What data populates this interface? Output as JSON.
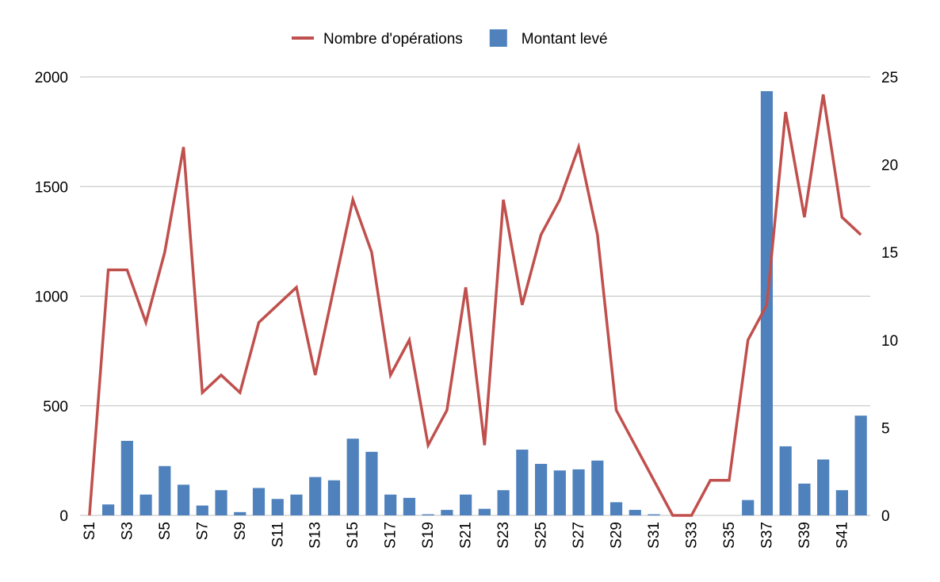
{
  "chart_data": {
    "type": "bar",
    "categories": [
      "S1",
      "S2",
      "S3",
      "S4",
      "S5",
      "S6",
      "S7",
      "S8",
      "S9",
      "S10",
      "S11",
      "S12",
      "S13",
      "S14",
      "S15",
      "S16",
      "S17",
      "S18",
      "S19",
      "S20",
      "S21",
      "S22",
      "S23",
      "S24",
      "S25",
      "S26",
      "S27",
      "S28",
      "S29",
      "S30",
      "S31",
      "S32",
      "S33",
      "S34",
      "S35",
      "S36",
      "S37",
      "S38",
      "S39",
      "S40",
      "S41",
      "S42"
    ],
    "x_tick_labels": [
      "S1",
      "S3",
      "S5",
      "S7",
      "S9",
      "S11",
      "S13",
      "S15",
      "S17",
      "S19",
      "S21",
      "S23",
      "S25",
      "S27",
      "S29",
      "S31",
      "S33",
      "S35",
      "S37",
      "S39",
      "S41"
    ],
    "series": [
      {
        "name": "Montant levé",
        "type": "bar",
        "axis": "left",
        "color": "#4F81BD",
        "values": [
          0,
          50,
          340,
          95,
          225,
          140,
          45,
          115,
          15,
          125,
          75,
          95,
          175,
          160,
          350,
          290,
          95,
          80,
          5,
          25,
          95,
          30,
          115,
          300,
          235,
          205,
          210,
          250,
          60,
          25,
          5,
          0,
          0,
          0,
          0,
          70,
          1935,
          315,
          145,
          255,
          115,
          455
        ]
      },
      {
        "name": "Nombre d'opérations",
        "type": "line",
        "axis": "right",
        "color": "#C0504D",
        "values": [
          0,
          14,
          14,
          11,
          15,
          21,
          7,
          8,
          7,
          11,
          12,
          13,
          8,
          13,
          18,
          15,
          8,
          10,
          4,
          6,
          13,
          4,
          18,
          12,
          16,
          18,
          21,
          16,
          6,
          4,
          2,
          0,
          0,
          2,
          2,
          10,
          12,
          23,
          17,
          24,
          17,
          16
        ]
      }
    ],
    "y_left": {
      "ylim": [
        0,
        2000
      ],
      "ticks": [
        0,
        500,
        1000,
        1500,
        2000
      ]
    },
    "y_right": {
      "ylim": [
        0,
        25
      ],
      "ticks": [
        0,
        5,
        10,
        15,
        20,
        25
      ]
    },
    "grid": true,
    "legend": {
      "placement": "top-center",
      "entries": [
        {
          "label": "Nombre d'opérations",
          "color": "#C0504D",
          "marker": "line"
        },
        {
          "label": "Montant levé",
          "color": "#4F81BD",
          "marker": "square"
        }
      ]
    },
    "title": "",
    "xlabel": "",
    "ylabel": ""
  }
}
